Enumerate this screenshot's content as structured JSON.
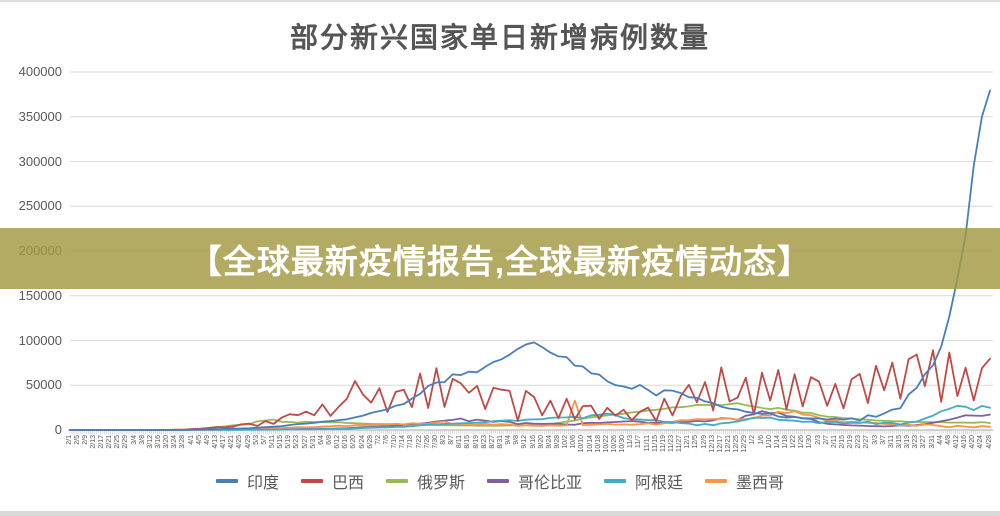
{
  "chart": {
    "title": "部分新兴国家单日新增病例数量"
  },
  "banner": {
    "text": "【全球最新疫情报告,全球最新疫情动态】",
    "bg_color": "#a29842",
    "bg_opacity": 0.82,
    "text_color": "#ffffff"
  },
  "colors": {
    "grid": "#d9d9d9",
    "axis": "#a6a6a6",
    "tick": "#c8c8c8",
    "label": "#595959"
  },
  "chart_data": {
    "type": "line",
    "title": "部分新兴国家单日新增病例数量",
    "xlabel": "",
    "ylabel": "",
    "ylim": [
      0,
      400000
    ],
    "y_ticks": [
      0,
      50000,
      100000,
      150000,
      200000,
      250000,
      300000,
      350000,
      400000
    ],
    "grid": "horizontal",
    "legend_position": "bottom",
    "x_note": "dates every 4 days, 2020-02-01 to 2021-04-28",
    "x": [
      "2/1",
      "2/5",
      "2/9",
      "2/13",
      "2/17",
      "2/21",
      "2/25",
      "2/29",
      "3/4",
      "3/8",
      "3/12",
      "3/16",
      "3/20",
      "3/24",
      "3/28",
      "4/1",
      "4/5",
      "4/9",
      "4/13",
      "4/17",
      "4/21",
      "4/25",
      "4/29",
      "5/3",
      "5/7",
      "5/11",
      "5/15",
      "5/19",
      "5/23",
      "5/27",
      "5/31",
      "6/4",
      "6/8",
      "6/12",
      "6/16",
      "6/20",
      "6/24",
      "6/28",
      "7/2",
      "7/6",
      "7/10",
      "7/14",
      "7/18",
      "7/22",
      "7/26",
      "7/30",
      "8/3",
      "8/7",
      "8/11",
      "8/15",
      "8/19",
      "8/23",
      "8/27",
      "8/31",
      "9/4",
      "9/8",
      "9/12",
      "9/16",
      "9/20",
      "9/24",
      "9/28",
      "10/2",
      "10/6",
      "10/10",
      "10/14",
      "10/18",
      "10/22",
      "10/26",
      "10/30",
      "11/3",
      "11/7",
      "11/11",
      "11/15",
      "11/19",
      "11/23",
      "11/27",
      "12/1",
      "12/5",
      "12/9",
      "12/13",
      "12/17",
      "12/21",
      "12/25",
      "12/29",
      "1/2",
      "1/6",
      "1/10",
      "1/14",
      "1/18",
      "1/22",
      "1/26",
      "1/30",
      "2/3",
      "2/7",
      "2/11",
      "2/15",
      "2/19",
      "2/23",
      "2/27",
      "3/3",
      "3/7",
      "3/11",
      "3/15",
      "3/19",
      "3/23",
      "3/27",
      "3/31",
      "4/4",
      "4/8",
      "4/12",
      "4/16",
      "4/20",
      "4/24",
      "4/28"
    ],
    "series": [
      {
        "name": "印度",
        "color": "#4a7ebb",
        "values": [
          1,
          1,
          2,
          3,
          2,
          1,
          1,
          2,
          5,
          10,
          20,
          40,
          70,
          110,
          160,
          300,
          520,
          760,
          1050,
          1250,
          1450,
          1650,
          1900,
          2550,
          3100,
          3650,
          4200,
          5600,
          6550,
          7100,
          8100,
          9300,
          10000,
          11100,
          12000,
          14100,
          16100,
          19100,
          21100,
          23100,
          27100,
          29100,
          35100,
          40400,
          49300,
          53100,
          53500,
          62200,
          61300,
          65100,
          64500,
          70500,
          76000,
          79000,
          84200,
          90600,
          95500,
          97900,
          92600,
          86500,
          82200,
          81500,
          72000,
          71000,
          63500,
          61900,
          54400,
          50100,
          48600,
          46000,
          50400,
          44700,
          38600,
          44400,
          44000,
          41300,
          36600,
          36000,
          32000,
          30000,
          26000,
          23900,
          23000,
          20500,
          19000,
          18100,
          18600,
          15100,
          13800,
          14500,
          13200,
          13000,
          12900,
          11700,
          12900,
          11600,
          13200,
          10600,
          16500,
          14800,
          18600,
          22800,
          24400,
          39700,
          47200,
          62300,
          72300,
          93200,
          126800,
          168900,
          217400,
          295000,
          350000,
          379300
        ]
      },
      {
        "name": "巴西",
        "color": "#be4b48",
        "values": [
          0,
          0,
          0,
          0,
          0,
          0,
          0,
          2,
          5,
          20,
          35,
          60,
          110,
          310,
          500,
          1100,
          1400,
          2200,
          3300,
          2900,
          3700,
          6300,
          7200,
          4500,
          9900,
          6800,
          13900,
          17700,
          16500,
          20600,
          16400,
          28600,
          15700,
          25900,
          34900,
          54800,
          39400,
          30500,
          46700,
          20200,
          42600,
          45000,
          25600,
          63000,
          24600,
          69000,
          25800,
          57200,
          52200,
          41600,
          49300,
          23400,
          47100,
          45000,
          43800,
          10300,
          43700,
          36800,
          16400,
          32800,
          13200,
          35000,
          11900,
          26700,
          27200,
          12300,
          24800,
          16000,
          22700,
          11000,
          20300,
          25000,
          10100,
          35000,
          16200,
          37600,
          50400,
          30900,
          53500,
          21800,
          70000,
          31800,
          36200,
          58400,
          17300,
          64000,
          33000,
          67000,
          23000,
          62300,
          26300,
          59000,
          54100,
          27000,
          51500,
          24100,
          56700,
          62700,
          30000,
          71700,
          44400,
          75400,
          35000,
          79000,
          84400,
          49000,
          89200,
          31400,
          86600,
          37900,
          69600,
          33000,
          69100,
          79700
        ]
      },
      {
        "name": "俄罗斯",
        "color": "#98b954",
        "values": [
          0,
          0,
          0,
          0,
          0,
          0,
          0,
          0,
          3,
          6,
          10,
          30,
          50,
          120,
          190,
          500,
          900,
          1500,
          2800,
          4000,
          5200,
          5800,
          6500,
          9600,
          10600,
          11600,
          9200,
          8900,
          8300,
          9200,
          8900,
          8800,
          8500,
          8700,
          7800,
          7600,
          7200,
          6800,
          6700,
          6600,
          6600,
          6200,
          6100,
          5800,
          5700,
          5500,
          5400,
          5200,
          5000,
          5100,
          4800,
          4900,
          4700,
          4900,
          5000,
          5100,
          5500,
          5800,
          6200,
          6600,
          7900,
          9400,
          10600,
          12800,
          14200,
          15100,
          16300,
          17300,
          18100,
          19700,
          20500,
          21800,
          22600,
          23600,
          25200,
          25500,
          26400,
          28100,
          27900,
          28100,
          27800,
          28800,
          29900,
          27700,
          26300,
          24700,
          23300,
          24700,
          22800,
          21700,
          19300,
          19100,
          16500,
          15000,
          14500,
          13200,
          12800,
          11800,
          11500,
          10600,
          10300,
          9800,
          9700,
          9200,
          9100,
          8800,
          8700,
          8800,
          8300,
          8400,
          8300,
          8100,
          8800,
          7800
        ]
      },
      {
        "name": "哥伦比亚",
        "color": "#7e62a0",
        "values": [
          0,
          0,
          0,
          0,
          0,
          0,
          0,
          0,
          0,
          1,
          3,
          10,
          30,
          50,
          80,
          100,
          140,
          190,
          240,
          300,
          350,
          400,
          450,
          500,
          600,
          700,
          800,
          900,
          1100,
          1200,
          1300,
          1500,
          1600,
          1800,
          2000,
          2500,
          3000,
          3500,
          4000,
          4200,
          5000,
          5600,
          6800,
          7000,
          8000,
          9500,
          10500,
          11300,
          12800,
          9700,
          11600,
          10500,
          9000,
          10000,
          9000,
          6500,
          7800,
          7200,
          6800,
          7000,
          6900,
          6200,
          5800,
          7600,
          8100,
          7800,
          8500,
          8900,
          9500,
          9900,
          9300,
          8000,
          8300,
          7900,
          8100,
          8800,
          9000,
          10200,
          9500,
          10800,
          13300,
          12900,
          11300,
          16000,
          17600,
          21100,
          18900,
          19400,
          15600,
          14900,
          13000,
          12300,
          8800,
          6900,
          6300,
          5600,
          5100,
          4900,
          4500,
          4200,
          4000,
          4500,
          5100,
          4800,
          5600,
          6700,
          8100,
          9800,
          11500,
          13800,
          16400,
          16100,
          15800,
          17200
        ]
      },
      {
        "name": "阿根廷",
        "color": "#45aac8",
        "values": [
          0,
          0,
          0,
          0,
          0,
          0,
          0,
          0,
          0,
          1,
          2,
          5,
          10,
          30,
          55,
          80,
          100,
          120,
          130,
          150,
          170,
          190,
          220,
          250,
          300,
          350,
          450,
          600,
          700,
          800,
          900,
          1000,
          1200,
          1400,
          1500,
          1800,
          2200,
          2600,
          2800,
          3000,
          3300,
          3600,
          4200,
          5300,
          5900,
          6400,
          6800,
          7000,
          7500,
          7800,
          8200,
          8700,
          10000,
          10500,
          11000,
          10100,
          11500,
          11800,
          12100,
          13500,
          14000,
          14100,
          14700,
          13200,
          16400,
          17100,
          18300,
          16600,
          13300,
          12100,
          11700,
          11100,
          10900,
          9200,
          8800,
          7700,
          7100,
          5300,
          6700,
          5400,
          7500,
          8200,
          9500,
          11500,
          13800,
          13400,
          13900,
          11400,
          10800,
          10400,
          9200,
          9400,
          7500,
          9100,
          8900,
          7300,
          8200,
          7800,
          9400,
          6600,
          8100,
          7900,
          6200,
          8300,
          9400,
          12900,
          16100,
          20900,
          23700,
          27000,
          25900,
          22200,
          26900,
          24800
        ]
      },
      {
        "name": "墨西哥",
        "color": "#f79646",
        "values": [
          0,
          0,
          0,
          0,
          0,
          0,
          0,
          0,
          0,
          1,
          2,
          5,
          10,
          25,
          50,
          100,
          150,
          250,
          350,
          450,
          600,
          750,
          900,
          1300,
          1600,
          2000,
          2200,
          2700,
          3200,
          2900,
          3200,
          3900,
          4200,
          4800,
          4400,
          5300,
          5400,
          5200,
          5700,
          6100,
          6900,
          6200,
          7600,
          6800,
          7200,
          8500,
          9500,
          6600,
          7000,
          6300,
          5800,
          6800,
          5900,
          6500,
          6200,
          4600,
          5300,
          4800,
          4700,
          5200,
          4800,
          5100,
          33000,
          5400,
          5800,
          6100,
          6800,
          6000,
          6300,
          5900,
          6500,
          7500,
          6000,
          7400,
          9200,
          10800,
          11000,
          12100,
          11900,
          12300,
          12500,
          12800,
          11700,
          12100,
          13300,
          16100,
          16300,
          20500,
          18800,
          21000,
          17200,
          16500,
          13500,
          9800,
          10700,
          8600,
          9300,
          8600,
          8000,
          7800,
          6800,
          6500,
          5100,
          5800,
          4700,
          6300,
          5600,
          4200,
          3000,
          4700,
          3800,
          2900,
          4300,
          3600
        ]
      }
    ]
  }
}
